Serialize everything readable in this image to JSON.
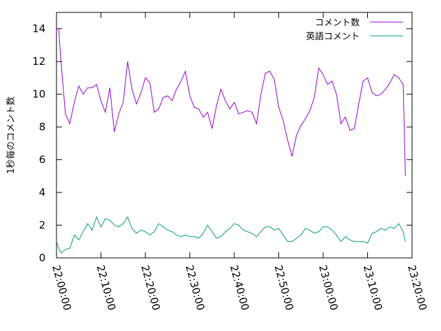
{
  "chart_data": {
    "type": "line",
    "ylabel": "1秒毎のコメント数",
    "xlabel": "",
    "ylim": [
      0,
      15
    ],
    "yticks": [
      "0",
      "2",
      "4",
      "6",
      "8",
      "10",
      "12",
      "14"
    ],
    "xlim_minutes": [
      0,
      80
    ],
    "xticks": [
      "22:00:00",
      "22:10:00",
      "22:20:00",
      "22:30:00",
      "22:40:00",
      "22:50:00",
      "23:00:00",
      "23:10:00",
      "23:20:00"
    ],
    "legend_position": "top-right",
    "series": [
      {
        "name": "コメント数",
        "color": "#9400d3",
        "x": [
          0,
          0.5,
          1,
          2,
          3,
          4,
          5,
          6,
          7,
          8,
          9,
          10,
          11,
          12,
          13,
          14,
          15,
          16,
          17,
          18,
          19,
          20,
          21,
          22,
          23,
          24,
          25,
          26,
          27,
          28,
          29,
          30,
          31,
          32,
          33,
          34,
          35,
          36,
          37,
          38,
          39,
          40,
          41,
          42,
          43,
          44,
          45,
          46,
          47,
          48,
          49,
          50,
          51,
          52,
          53,
          54,
          55,
          56,
          57,
          58,
          59,
          60,
          61,
          62,
          63,
          64,
          65,
          66,
          67,
          68,
          69,
          70,
          71,
          72,
          73,
          74,
          75,
          76,
          77,
          78,
          78.5
        ],
        "values": [
          14.0,
          14.0,
          12.0,
          8.8,
          8.2,
          9.5,
          10.5,
          10.0,
          10.4,
          10.4,
          10.6,
          9.6,
          8.9,
          10.4,
          7.7,
          8.8,
          9.5,
          12.0,
          10.3,
          9.4,
          10.1,
          11.0,
          10.7,
          8.9,
          9.1,
          9.8,
          9.9,
          9.6,
          10.3,
          10.8,
          11.4,
          9.9,
          9.2,
          9.1,
          8.6,
          8.9,
          7.9,
          9.3,
          10.3,
          9.6,
          9.1,
          9.5,
          8.8,
          8.9,
          9.0,
          8.9,
          8.2,
          10.0,
          11.3,
          11.4,
          10.9,
          9.2,
          8.4,
          7.2,
          6.2,
          7.5,
          8.1,
          8.5,
          9.0,
          9.8,
          11.6,
          11.2,
          10.6,
          10.8,
          10.0,
          8.2,
          8.6,
          7.8,
          7.9,
          9.4,
          10.8,
          11.0,
          10.1,
          9.9,
          10.0,
          10.3,
          10.7,
          11.2,
          11.0,
          10.6,
          5.0
        ]
      },
      {
        "name": "英語コメント",
        "color": "#009e73",
        "x": [
          0,
          0.5,
          1,
          2,
          3,
          4,
          5,
          6,
          7,
          8,
          9,
          10,
          11,
          12,
          13,
          14,
          15,
          16,
          17,
          18,
          19,
          20,
          21,
          22,
          23,
          24,
          25,
          26,
          27,
          28,
          29,
          30,
          31,
          32,
          33,
          34,
          35,
          36,
          37,
          38,
          39,
          40,
          41,
          42,
          43,
          44,
          45,
          46,
          47,
          48,
          49,
          50,
          51,
          52,
          53,
          54,
          55,
          56,
          57,
          58,
          59,
          60,
          61,
          62,
          63,
          64,
          65,
          66,
          67,
          68,
          69,
          70,
          71,
          72,
          73,
          74,
          75,
          76,
          77,
          78,
          78.5
        ],
        "values": [
          1.0,
          0.6,
          0.3,
          0.5,
          0.6,
          1.4,
          1.1,
          1.6,
          2.1,
          1.7,
          2.5,
          1.9,
          2.4,
          2.3,
          2.0,
          1.9,
          2.1,
          2.5,
          1.8,
          1.5,
          1.7,
          1.6,
          1.4,
          1.6,
          2.1,
          1.9,
          1.7,
          1.6,
          1.4,
          1.3,
          1.4,
          1.3,
          1.3,
          1.2,
          1.5,
          2.0,
          1.6,
          1.2,
          1.3,
          1.6,
          1.8,
          2.1,
          2.0,
          1.7,
          1.6,
          1.5,
          1.3,
          1.6,
          1.9,
          1.9,
          1.7,
          1.8,
          1.4,
          1.0,
          1.0,
          1.2,
          1.4,
          1.8,
          1.7,
          1.5,
          1.6,
          1.9,
          1.9,
          1.7,
          1.4,
          1.0,
          1.3,
          1.1,
          1.0,
          1.0,
          1.0,
          0.9,
          1.5,
          1.6,
          1.8,
          1.7,
          1.9,
          1.8,
          2.1,
          1.6,
          1.0
        ]
      }
    ]
  }
}
